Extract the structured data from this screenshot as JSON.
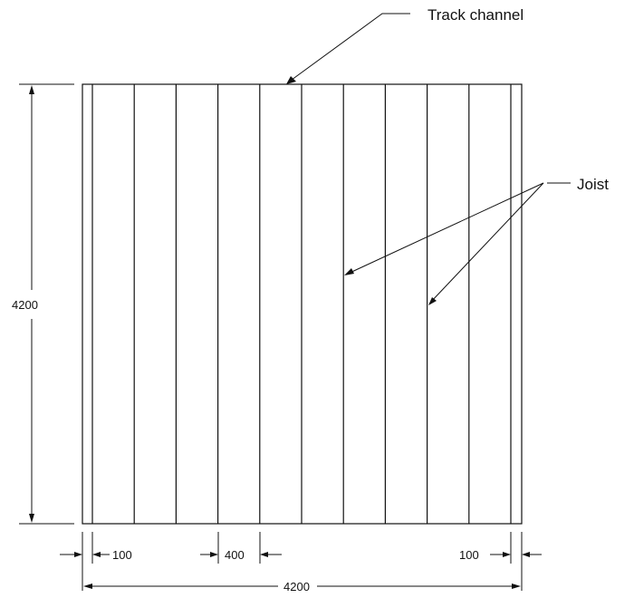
{
  "callouts": {
    "track_channel": "Track channel",
    "joist": "Joist"
  },
  "dimensions": {
    "height": "4200",
    "width": "4200",
    "edge_left": "100",
    "spacing": "400",
    "edge_right": "100"
  },
  "panel": {
    "joist_count": 11
  }
}
